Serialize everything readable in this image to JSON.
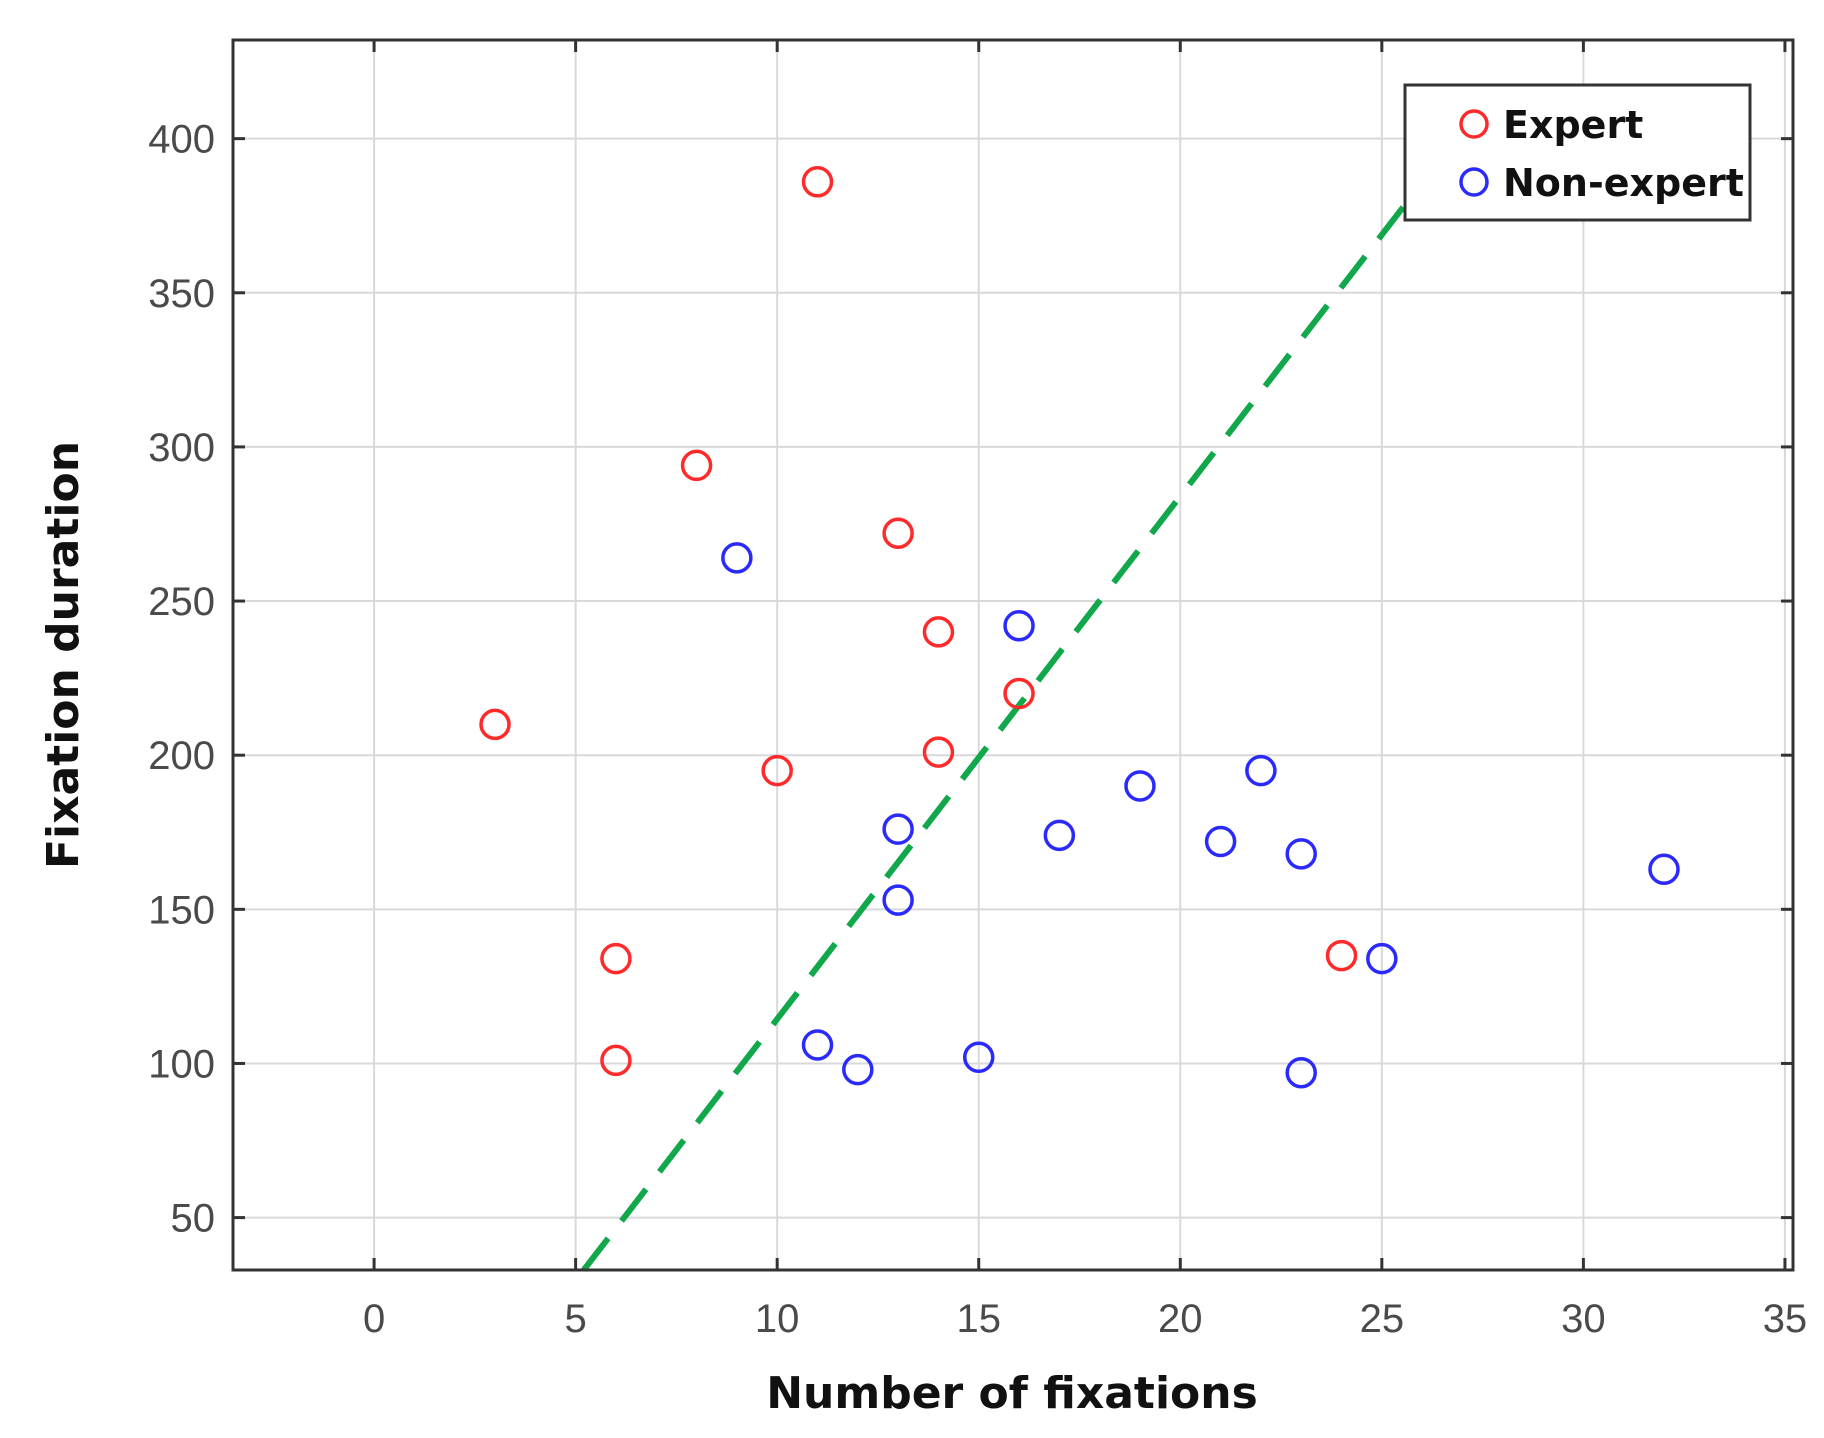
{
  "chart_data": {
    "type": "scatter",
    "xlabel": "Number of fixations",
    "ylabel": "Fixation duration",
    "xlim": [
      -3.5,
      35.2
    ],
    "ylim": [
      33,
      432
    ],
    "x_ticks": [
      0,
      5,
      10,
      15,
      20,
      25,
      30,
      35
    ],
    "y_ticks": [
      50,
      100,
      150,
      200,
      250,
      300,
      350,
      400
    ],
    "grid": true,
    "legend_position": "top-right",
    "series": [
      {
        "name": "Expert",
        "color": "#ff2a2a",
        "marker": "open-circle",
        "points": [
          {
            "x": 3,
            "y": 210
          },
          {
            "x": 6,
            "y": 134
          },
          {
            "x": 6,
            "y": 101
          },
          {
            "x": 8,
            "y": 294
          },
          {
            "x": 10,
            "y": 195
          },
          {
            "x": 11,
            "y": 386
          },
          {
            "x": 13,
            "y": 272
          },
          {
            "x": 14,
            "y": 240
          },
          {
            "x": 14,
            "y": 201
          },
          {
            "x": 16,
            "y": 220
          },
          {
            "x": 24,
            "y": 135
          }
        ]
      },
      {
        "name": "Non-expert",
        "color": "#2a2aff",
        "marker": "open-circle",
        "points": [
          {
            "x": 9,
            "y": 264
          },
          {
            "x": 11,
            "y": 106
          },
          {
            "x": 12,
            "y": 98
          },
          {
            "x": 13,
            "y": 176
          },
          {
            "x": 13,
            "y": 153
          },
          {
            "x": 15,
            "y": 102
          },
          {
            "x": 16,
            "y": 242
          },
          {
            "x": 17,
            "y": 174
          },
          {
            "x": 19,
            "y": 190
          },
          {
            "x": 21,
            "y": 172
          },
          {
            "x": 22,
            "y": 195
          },
          {
            "x": 23,
            "y": 168
          },
          {
            "x": 23,
            "y": 97
          },
          {
            "x": 25,
            "y": 134
          },
          {
            "x": 32,
            "y": 163
          }
        ]
      }
    ],
    "decision_line": {
      "style": "dashed",
      "color": "#10a84a",
      "x": [
        5.2,
        25.6
      ],
      "y": [
        33,
        379
      ]
    }
  }
}
